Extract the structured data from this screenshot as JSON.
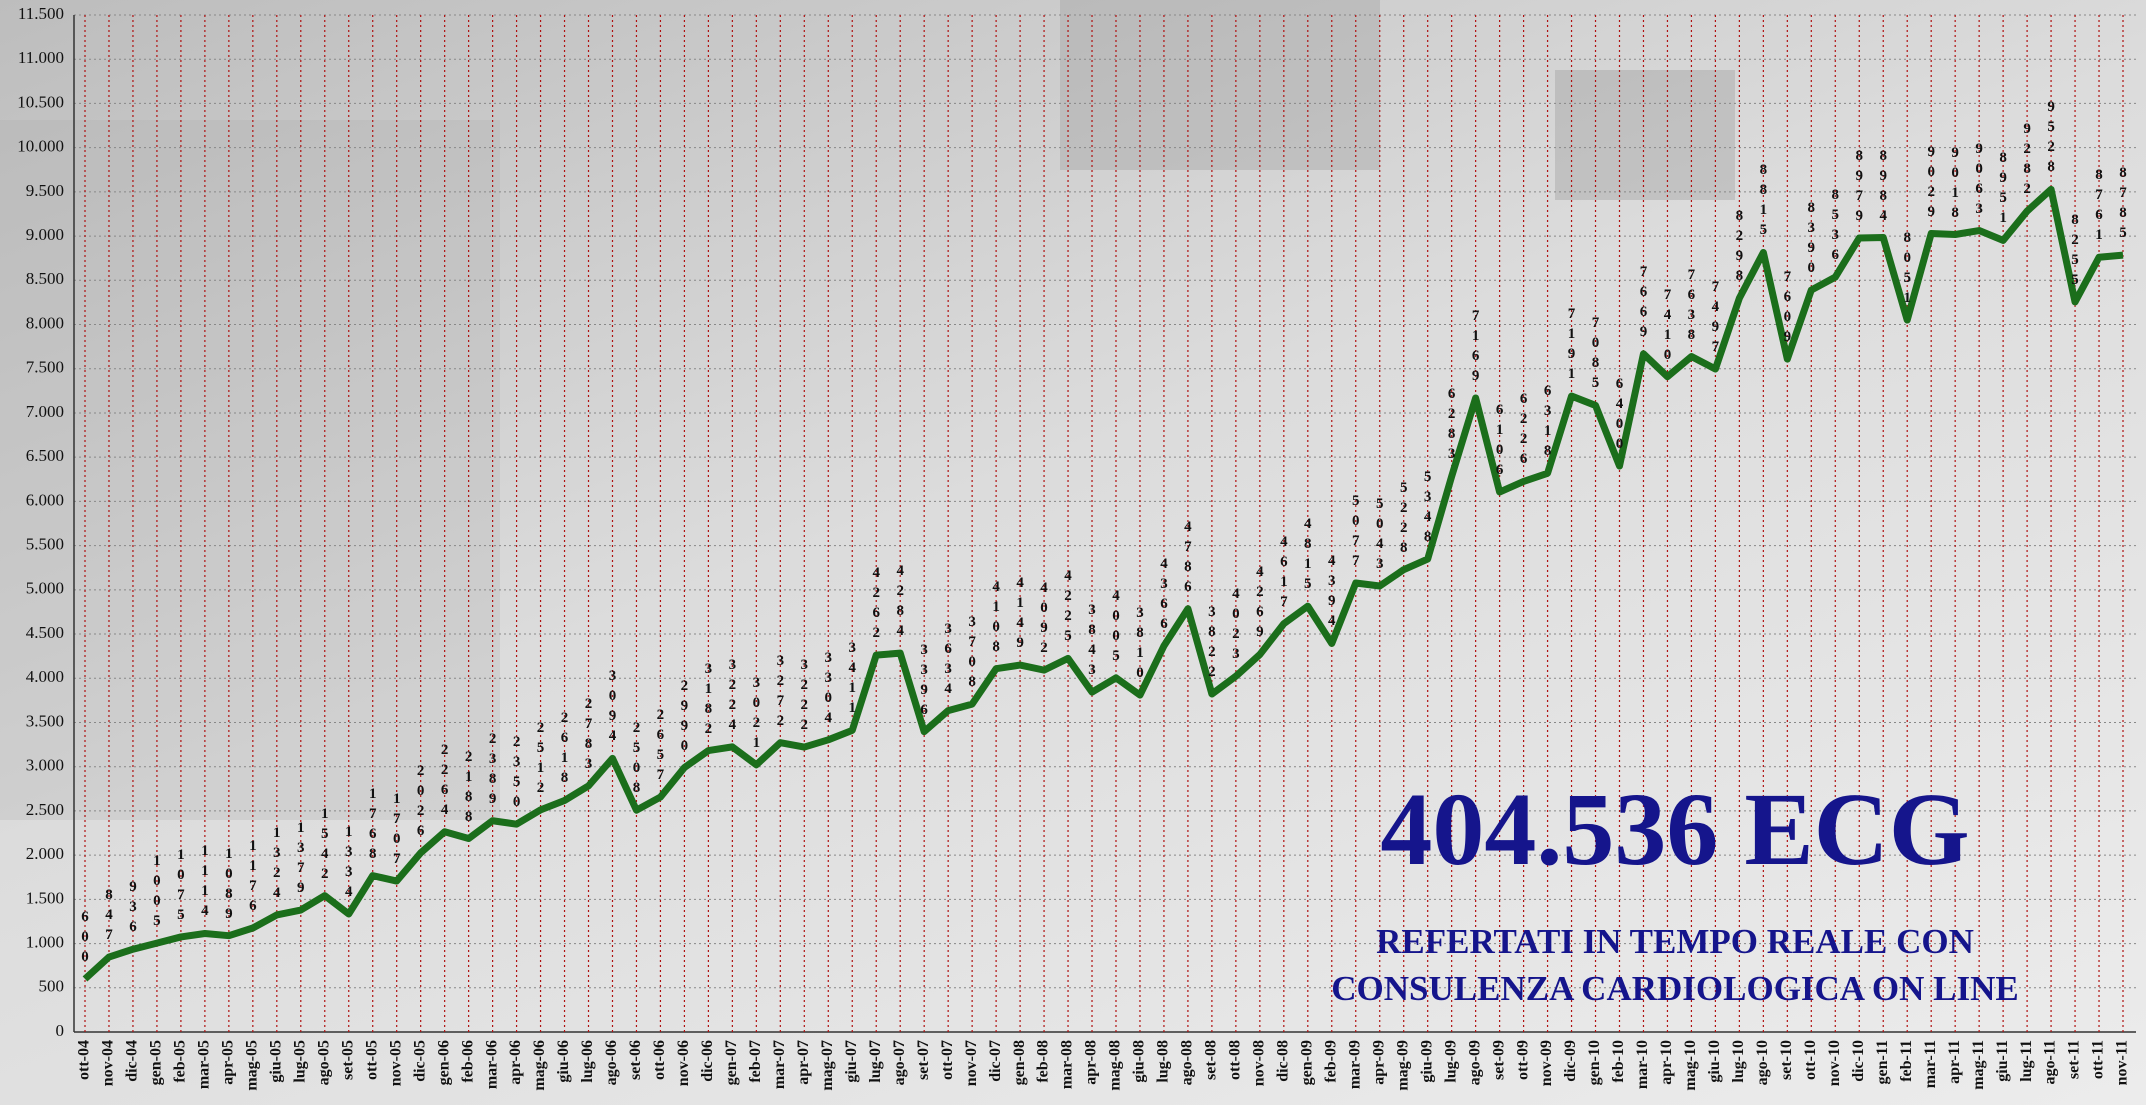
{
  "chart_data": {
    "type": "line",
    "categories": [
      "ott-04",
      "nov-04",
      "dic-04",
      "gen-05",
      "feb-05",
      "mar-05",
      "apr-05",
      "mag-05",
      "giu-05",
      "lug-05",
      "ago-05",
      "set-05",
      "ott-05",
      "nov-05",
      "dic-05",
      "gen-06",
      "feb-06",
      "mar-06",
      "apr-06",
      "mag-06",
      "giu-06",
      "lug-06",
      "ago-06",
      "set-06",
      "ott-06",
      "nov-06",
      "dic-06",
      "gen-07",
      "feb-07",
      "mar-07",
      "apr-07",
      "mag-07",
      "giu-07",
      "lug-07",
      "ago-07",
      "set-07",
      "ott-07",
      "nov-07",
      "dic-07",
      "gen-08",
      "feb-08",
      "mar-08",
      "apr-08",
      "mag-08",
      "giu-08",
      "lug-08",
      "ago-08",
      "set-08",
      "ott-08",
      "nov-08",
      "dic-08",
      "gen-09",
      "feb-09",
      "mar-09",
      "apr-09",
      "mag-09",
      "giu-09",
      "lug-09",
      "ago-09",
      "set-09",
      "ott-09",
      "nov-09",
      "dic-09",
      "gen-10",
      "feb-10",
      "mar-10",
      "apr-10",
      "mag-10",
      "giu-10",
      "lug-10",
      "ago-10",
      "set-10",
      "ott-10",
      "nov-10",
      "dic-10",
      "gen-11",
      "feb-11",
      "mar-11",
      "apr-11",
      "mag-11",
      "giu-11",
      "lug-11",
      "ago-11",
      "set-11",
      "ott-11",
      "nov-11"
    ],
    "values": [
      600,
      847,
      936,
      1005,
      1075,
      1114,
      1089,
      1176,
      1324,
      1379,
      1542,
      1334,
      1768,
      1707,
      2026,
      2264,
      2188,
      2389,
      2350,
      2512,
      2618,
      2783,
      3094,
      2508,
      2657,
      2990,
      3182,
      3224,
      3021,
      3272,
      3222,
      3304,
      3411,
      4262,
      4284,
      3396,
      3634,
      3708,
      4108,
      4149,
      4092,
      4225,
      3843,
      4005,
      3810,
      4366,
      4786,
      3822,
      4023,
      4269,
      4617,
      4815,
      4394,
      5077,
      5043,
      5228,
      5348,
      6283,
      7169,
      6106,
      6226,
      6318,
      7191,
      7085,
      6400,
      7669,
      7410,
      7638,
      7497,
      8298,
      8815,
      7609,
      8390,
      8536,
      8979,
      8984,
      8051,
      9029,
      9018,
      9063,
      8951,
      9282,
      9528,
      8255,
      8761,
      8785
    ],
    "color": "#1b6e1b",
    "ylim": [
      0,
      11500
    ],
    "yticks": [
      0,
      500,
      {
        "value": 1000,
        "label": "1.000"
      },
      {
        "value": 1500,
        "label": "1.500"
      },
      {
        "value": 2000,
        "label": "2.000"
      },
      {
        "value": 2500,
        "label": "2.500"
      },
      {
        "value": 3000,
        "label": "3.000"
      },
      {
        "value": 3500,
        "label": "3.500"
      },
      {
        "value": 4000,
        "label": "4.000"
      },
      {
        "value": 4500,
        "label": "4.500"
      },
      {
        "value": 5000,
        "label": "5.000"
      },
      {
        "value": 5500,
        "label": "5.500"
      },
      {
        "value": 6000,
        "label": "6.000"
      },
      {
        "value": 6500,
        "label": "6.500"
      },
      {
        "value": 7000,
        "label": "7.000"
      },
      {
        "value": 7500,
        "label": "7.500"
      },
      {
        "value": 8000,
        "label": "8.000"
      },
      {
        "value": 8500,
        "label": "8.500"
      },
      {
        "value": 9000,
        "label": "9.000"
      },
      {
        "value": 9500,
        "label": "9.500"
      },
      {
        "value": 10000,
        "label": "10.000"
      },
      {
        "value": 10500,
        "label": "10.500"
      },
      {
        "value": 11000,
        "label": "11.000"
      },
      {
        "value": 11500,
        "label": "11.500"
      }
    ],
    "grid": true,
    "annotations": [
      "404.536 ECG",
      "REFERTATI IN TEMPO REALE CON",
      "CONSULENZA CARDIOLOGICA ON LINE"
    ]
  }
}
